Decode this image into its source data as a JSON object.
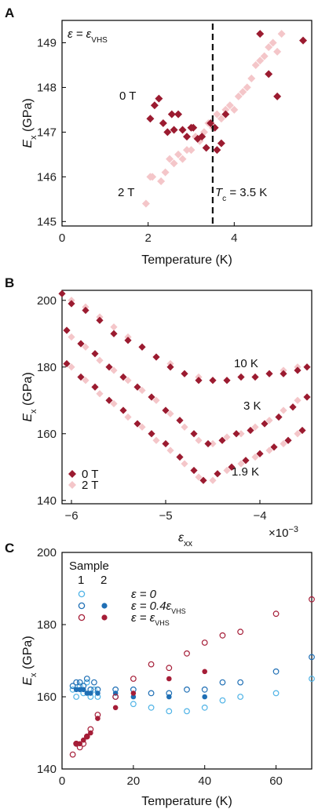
{
  "colors": {
    "dark_red": "#9b1b30",
    "pink": "#f4c6c9",
    "light_blue": "#4fb3e6",
    "blue": "#1f6fb5",
    "red": "#a51d37"
  },
  "panels": {
    "A": {
      "letter": "A",
      "xlabel": "Temperature (K)",
      "ylabel_main": "E",
      "ylabel_sub": "x",
      "ylabel_unit": " (GPa)",
      "eps_label_1": "ε = ε",
      "eps_label_sub": "VHS",
      "label_0T": "0 T",
      "label_2T": "2 T",
      "tc_main": "T",
      "tc_sub": "c",
      "tc_rest": " = 3.5 K"
    },
    "B": {
      "letter": "B",
      "xlabel_main": "ε",
      "xlabel_sub": "xx",
      "xmult": "×10",
      "xmult_exp": "−3",
      "ylabel_main": "E",
      "ylabel_sub": "x",
      "ylabel_unit": " (GPa)",
      "label_10K": "10 K",
      "label_3K": "3 K",
      "label_19K": "1.9 K",
      "legend_0T": "0 T",
      "legend_2T": "2 T"
    },
    "C": {
      "letter": "C",
      "xlabel": "Temperature (K)",
      "ylabel_main": "E",
      "ylabel_sub": "x",
      "ylabel_unit": " (GPa)",
      "sample_title": "Sample",
      "col1": "1",
      "col2": "2",
      "leg_a": "ε = 0",
      "leg_b": "ε = 0.4ε",
      "leg_b_sub": "VHS",
      "leg_c": "ε = ε",
      "leg_c_sub": "VHS"
    }
  },
  "chart_data": [
    {
      "type": "scatter",
      "xlabel": "Temperature (K)",
      "ylabel": "Ex (GPa)",
      "xlim": [
        0,
        5.8
      ],
      "ylim": [
        144.9,
        149.5
      ],
      "xticks": [
        0,
        2,
        4
      ],
      "yticks": [
        145,
        146,
        147,
        148,
        149
      ],
      "vline": {
        "x": 3.5,
        "label": "Tc = 3.5 K"
      },
      "series": [
        {
          "name": "0 T",
          "color": "#9b1b30",
          "x": [
            2.05,
            2.15,
            2.25,
            2.35,
            2.45,
            2.55,
            2.6,
            2.7,
            2.8,
            2.9,
            3.0,
            3.05,
            3.15,
            3.25,
            3.35,
            3.45,
            3.55,
            3.6,
            3.7,
            3.8,
            4.6,
            4.8,
            5.0,
            5.6
          ],
          "y": [
            147.3,
            147.6,
            147.75,
            147.2,
            147.0,
            147.4,
            147.05,
            147.4,
            147.05,
            146.9,
            147.1,
            147.1,
            146.85,
            146.9,
            146.65,
            147.2,
            147.1,
            146.6,
            146.75,
            147.4,
            149.2,
            148.3,
            147.8,
            149.05
          ]
        },
        {
          "name": "2 T",
          "color": "#f4c6c9",
          "x": [
            1.95,
            2.05,
            2.1,
            2.3,
            2.4,
            2.5,
            2.6,
            2.7,
            2.8,
            2.9,
            3.0,
            3.1,
            3.2,
            3.3,
            3.4,
            3.5,
            3.6,
            3.7,
            3.8,
            3.9,
            4.0,
            4.1,
            4.2,
            4.3,
            4.4,
            4.5,
            4.6,
            4.7,
            4.8,
            4.9,
            5.0,
            5.1
          ],
          "y": [
            145.4,
            146.0,
            146.0,
            145.9,
            146.1,
            146.4,
            146.3,
            146.5,
            146.4,
            146.6,
            146.6,
            146.9,
            146.8,
            147.0,
            147.2,
            147.1,
            147.4,
            147.3,
            147.5,
            147.6,
            147.5,
            147.8,
            147.9,
            148.0,
            148.2,
            148.5,
            148.6,
            148.7,
            148.9,
            149.0,
            148.8,
            149.2
          ]
        }
      ]
    },
    {
      "type": "scatter",
      "xlabel": "εxx",
      "ylabel": "Ex (GPa)",
      "x_multiplier": "×10−3",
      "xlim": [
        -6.1,
        -3.45
      ],
      "ylim": [
        139,
        203
      ],
      "xticks": [
        -6,
        -5,
        -4
      ],
      "yticks": [
        140,
        160,
        180,
        200
      ],
      "series": [
        {
          "name": "0 T",
          "color": "#9b1b30",
          "curves": [
            {
              "label": "10 K",
              "x": [
                -6.1,
                -6.0,
                -5.85,
                -5.7,
                -5.55,
                -5.4,
                -5.25,
                -5.1,
                -4.95,
                -4.8,
                -4.65,
                -4.5,
                -4.35,
                -4.2,
                -4.05,
                -3.9,
                -3.75,
                -3.6,
                -3.5
              ],
              "y": [
                202,
                199,
                197,
                194,
                190,
                188,
                186,
                183,
                180,
                178,
                176,
                176,
                176,
                177,
                177,
                178,
                178,
                179,
                180
              ]
            },
            {
              "label": "3 K",
              "x": [
                -6.05,
                -5.9,
                -5.75,
                -5.6,
                -5.45,
                -5.3,
                -5.15,
                -5.0,
                -4.85,
                -4.7,
                -4.55,
                -4.4,
                -4.25,
                -4.1,
                -3.95,
                -3.8,
                -3.65,
                -3.5
              ],
              "y": [
                191,
                187,
                184,
                180,
                177,
                174,
                171,
                167,
                164,
                160,
                157,
                158,
                160,
                161,
                163,
                165,
                168,
                171
              ]
            },
            {
              "label": "1.9 K",
              "x": [
                -6.05,
                -5.9,
                -5.75,
                -5.6,
                -5.45,
                -5.3,
                -5.15,
                -5.0,
                -4.85,
                -4.7,
                -4.6,
                -4.45,
                -4.3,
                -4.15,
                -4.0,
                -3.85,
                -3.7,
                -3.55
              ],
              "y": [
                181,
                177,
                174,
                170,
                167,
                163,
                160,
                157,
                153,
                149,
                146,
                148,
                150,
                152,
                154,
                156,
                158,
                161
              ]
            }
          ]
        },
        {
          "name": "2 T",
          "color": "#f4c6c9",
          "curves": [
            {
              "label": "10 K",
              "x": [
                -6.0,
                -5.85,
                -5.7,
                -5.55,
                -5.4,
                -5.25,
                -5.1,
                -4.95,
                -4.8,
                -4.65,
                -4.5,
                -4.35,
                -4.2,
                -4.05,
                -3.9,
                -3.75,
                -3.6
              ],
              "y": [
                200,
                198,
                195,
                192,
                189,
                186,
                183,
                181,
                178,
                177,
                176,
                176,
                177,
                177,
                178,
                179,
                180
              ]
            },
            {
              "label": "3 K",
              "x": [
                -6.0,
                -5.85,
                -5.7,
                -5.55,
                -5.4,
                -5.25,
                -5.1,
                -4.95,
                -4.8,
                -4.65,
                -4.5,
                -4.35,
                -4.2,
                -4.05,
                -3.9,
                -3.75,
                -3.6
              ],
              "y": [
                189,
                186,
                182,
                179,
                176,
                173,
                170,
                166,
                162,
                158,
                157,
                159,
                160,
                162,
                164,
                167,
                170
              ]
            },
            {
              "label": "1.9 K",
              "x": [
                -6.0,
                -5.85,
                -5.7,
                -5.55,
                -5.4,
                -5.25,
                -5.1,
                -4.95,
                -4.8,
                -4.65,
                -4.5,
                -4.35,
                -4.2,
                -4.05,
                -3.9,
                -3.75,
                -3.6
              ],
              "y": [
                180,
                176,
                172,
                169,
                165,
                162,
                158,
                155,
                151,
                147,
                146,
                149,
                151,
                153,
                155,
                157,
                160
              ]
            }
          ]
        }
      ]
    },
    {
      "type": "scatter",
      "xlabel": "Temperature (K)",
      "ylabel": "Ex (GPa)",
      "xlim": [
        0,
        70
      ],
      "ylim": [
        140,
        200
      ],
      "xticks": [
        0,
        20,
        40,
        60
      ],
      "yticks": [
        140,
        160,
        180,
        200
      ],
      "series": [
        {
          "name": "ε = 0",
          "sample": "1",
          "marker": "open",
          "color": "#4fb3e6",
          "x": [
            3,
            4,
            5,
            6,
            7,
            8,
            9,
            10,
            15,
            20,
            25,
            30,
            35,
            40,
            45,
            50,
            60,
            70
          ],
          "y": [
            162,
            160,
            163,
            161,
            164,
            160,
            162,
            160,
            160,
            158,
            157,
            156,
            156,
            157,
            159,
            160,
            161,
            165
          ]
        },
        {
          "name": "ε = 0.4εVHS",
          "sample": "1",
          "marker": "open",
          "color": "#1f6fb5",
          "x": [
            3,
            4,
            5,
            6,
            7,
            8,
            9,
            10,
            15,
            20,
            25,
            30,
            35,
            40,
            45,
            50,
            60,
            70
          ],
          "y": [
            163,
            164,
            164,
            163,
            165,
            162,
            164,
            162,
            162,
            162,
            161,
            161,
            162,
            162,
            164,
            164,
            167,
            171
          ]
        },
        {
          "name": "ε = 0.4εVHS",
          "sample": "2",
          "marker": "filled",
          "color": "#1f6fb5",
          "x": [
            4,
            5,
            6,
            7,
            8,
            10,
            15,
            20,
            30,
            40
          ],
          "y": [
            162,
            162,
            162,
            161,
            161,
            161,
            161,
            160,
            160,
            160
          ]
        },
        {
          "name": "ε = εVHS",
          "sample": "1",
          "marker": "open",
          "color": "#a51d37",
          "x": [
            3,
            4,
            5,
            6,
            7,
            8,
            10,
            15,
            20,
            25,
            30,
            35,
            40,
            45,
            50,
            60,
            70
          ],
          "y": [
            144,
            147,
            146,
            147,
            149,
            151,
            155,
            160,
            165,
            169,
            168,
            172,
            175,
            177,
            178,
            183,
            187
          ]
        },
        {
          "name": "ε = εVHS",
          "sample": "2",
          "marker": "filled",
          "color": "#a51d37",
          "x": [
            4,
            5,
            6,
            7,
            8,
            10,
            15,
            20,
            30,
            40
          ],
          "y": [
            147,
            147,
            148,
            149,
            150,
            154,
            157,
            161,
            165,
            167
          ]
        }
      ]
    }
  ]
}
